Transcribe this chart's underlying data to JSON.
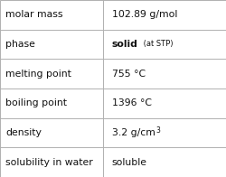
{
  "rows": [
    {
      "label": "molar mass",
      "value": "102.89 g/mol",
      "type": "plain"
    },
    {
      "label": "phase",
      "value": "solid",
      "type": "phase",
      "extra": " (at STP)"
    },
    {
      "label": "melting point",
      "value": "755 °C",
      "type": "plain"
    },
    {
      "label": "boiling point",
      "value": "1396 °C",
      "type": "plain"
    },
    {
      "label": "density",
      "value": "3.2 g/cm",
      "type": "super",
      "sup": "3"
    },
    {
      "label": "solubility in water",
      "value": "soluble",
      "type": "plain"
    }
  ],
  "n_rows": 6,
  "col_split": 0.455,
  "bg_color": "#ffffff",
  "border_color": "#b0b0b0",
  "label_font_size": 7.8,
  "value_font_size": 7.8,
  "extra_font_size": 6.0,
  "sup_font_size": 5.5,
  "label_color": "#111111",
  "value_color": "#111111",
  "figw": 2.5,
  "figh": 1.96,
  "dpi": 100
}
